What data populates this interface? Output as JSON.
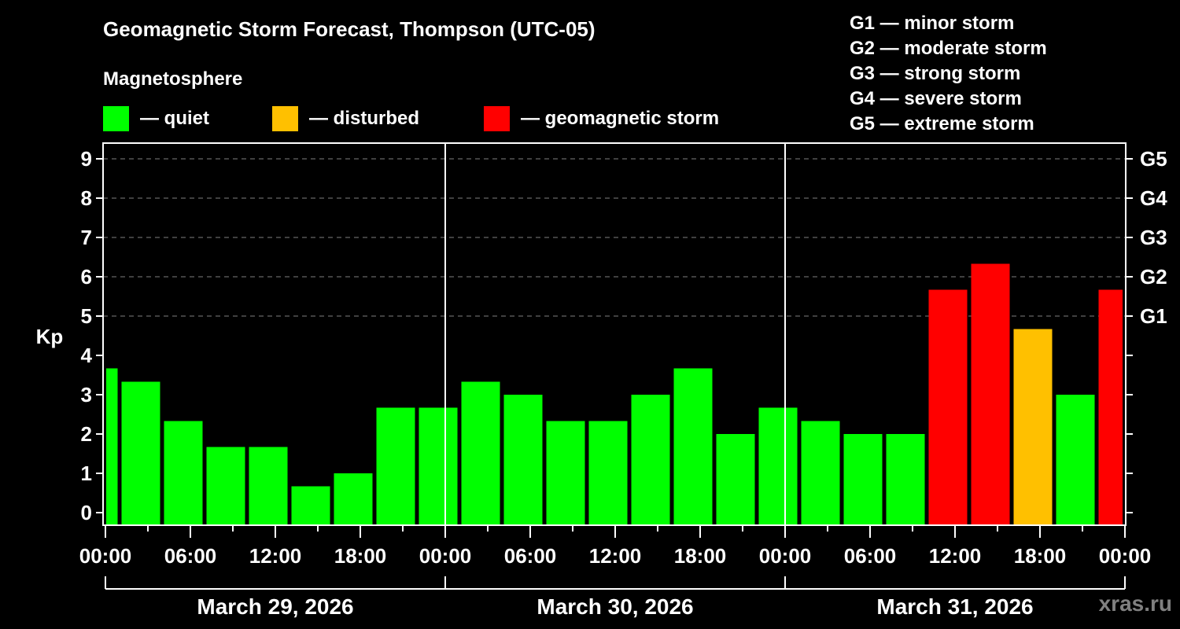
{
  "header": {
    "title": "Geomagnetic Storm Forecast, Thompson (UTC-05)",
    "subtitle": "Magnetosphere"
  },
  "legend": {
    "items": [
      {
        "label": "— quiet",
        "color": "#00ff00"
      },
      {
        "label": "— disturbed",
        "color": "#ffc000"
      },
      {
        "label": "— geomagnetic storm",
        "color": "#ff0000"
      }
    ]
  },
  "g_scale_legend": [
    "G1 — minor storm",
    "G2 — moderate storm",
    "G3 — strong storm",
    "G4 — severe storm",
    "G5 — extreme storm"
  ],
  "watermark": "xras.ru",
  "colors": {
    "quiet": "#00ff00",
    "disturbed": "#ffc000",
    "storm": "#ff0000",
    "background": "#000000",
    "axis": "#ffffff",
    "grid": "#808080"
  },
  "chart_data": {
    "type": "bar",
    "title": "Geomagnetic Storm Forecast, Thompson (UTC-05)",
    "ylabel": "Kp",
    "xlabel": "",
    "ylim": [
      -0.3,
      9.6
    ],
    "yticks": [
      0,
      1,
      2,
      3,
      4,
      5,
      6,
      7,
      8,
      9
    ],
    "y2ticks": [
      {
        "kp": 5,
        "label": "G1"
      },
      {
        "kp": 6,
        "label": "G2"
      },
      {
        "kp": 7,
        "label": "G3"
      },
      {
        "kp": 8,
        "label": "G4"
      },
      {
        "kp": 9,
        "label": "G5"
      }
    ],
    "grid": "dashed horizontal at Kp 5-9",
    "xtick_labels": [
      "00:00",
      "06:00",
      "12:00",
      "18:00",
      "00:00",
      "06:00",
      "12:00",
      "18:00",
      "00:00",
      "06:00",
      "12:00",
      "18:00",
      "00:00"
    ],
    "days": [
      "March 29, 2026",
      "March 30, 2026",
      "March 31, 2026"
    ],
    "bars": [
      {
        "start_h": -2,
        "end_h": 1,
        "kp": 3.67,
        "level": "quiet"
      },
      {
        "start_h": 1,
        "end_h": 4,
        "kp": 3.33,
        "level": "quiet"
      },
      {
        "start_h": 4,
        "end_h": 7,
        "kp": 2.33,
        "level": "quiet"
      },
      {
        "start_h": 7,
        "end_h": 10,
        "kp": 1.67,
        "level": "quiet"
      },
      {
        "start_h": 10,
        "end_h": 13,
        "kp": 1.67,
        "level": "quiet"
      },
      {
        "start_h": 13,
        "end_h": 16,
        "kp": 0.67,
        "level": "quiet"
      },
      {
        "start_h": 16,
        "end_h": 19,
        "kp": 1.0,
        "level": "quiet"
      },
      {
        "start_h": 19,
        "end_h": 22,
        "kp": 2.67,
        "level": "quiet"
      },
      {
        "start_h": 22,
        "end_h": 25,
        "kp": 2.67,
        "level": "quiet"
      },
      {
        "start_h": 25,
        "end_h": 28,
        "kp": 3.33,
        "level": "quiet"
      },
      {
        "start_h": 28,
        "end_h": 31,
        "kp": 3.0,
        "level": "quiet"
      },
      {
        "start_h": 31,
        "end_h": 34,
        "kp": 2.33,
        "level": "quiet"
      },
      {
        "start_h": 34,
        "end_h": 37,
        "kp": 2.33,
        "level": "quiet"
      },
      {
        "start_h": 37,
        "end_h": 40,
        "kp": 3.0,
        "level": "quiet"
      },
      {
        "start_h": 40,
        "end_h": 43,
        "kp": 3.67,
        "level": "quiet"
      },
      {
        "start_h": 43,
        "end_h": 46,
        "kp": 2.0,
        "level": "quiet"
      },
      {
        "start_h": 46,
        "end_h": 49,
        "kp": 2.67,
        "level": "quiet"
      },
      {
        "start_h": 49,
        "end_h": 52,
        "kp": 2.33,
        "level": "quiet"
      },
      {
        "start_h": 52,
        "end_h": 55,
        "kp": 2.0,
        "level": "quiet"
      },
      {
        "start_h": 55,
        "end_h": 58,
        "kp": 2.0,
        "level": "quiet"
      },
      {
        "start_h": 58,
        "end_h": 61,
        "kp": 5.67,
        "level": "storm"
      },
      {
        "start_h": 61,
        "end_h": 64,
        "kp": 6.33,
        "level": "storm"
      },
      {
        "start_h": 64,
        "end_h": 67,
        "kp": 4.67,
        "level": "disturbed"
      },
      {
        "start_h": 67,
        "end_h": 70,
        "kp": 3.0,
        "level": "quiet"
      },
      {
        "start_h": 70,
        "end_h": 73,
        "kp": 5.67,
        "level": "storm"
      }
    ]
  }
}
